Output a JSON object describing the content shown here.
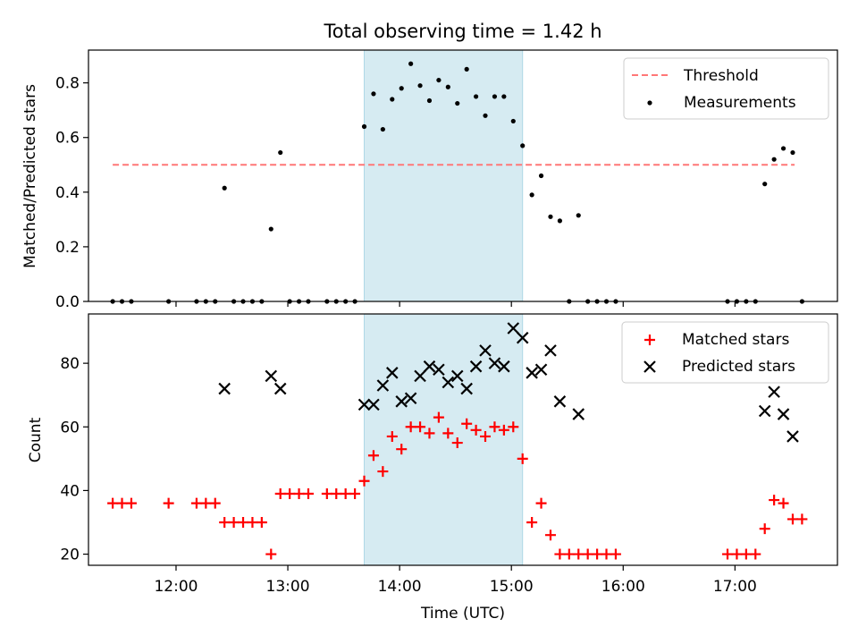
{
  "chart_data": [
    {
      "type": "scatter",
      "title": "Total observing time = 1.42 h",
      "xlabel": "",
      "ylabel": "Matched/Predicted stars",
      "xlim": [
        "11:13",
        "17:55"
      ],
      "ylim": [
        0,
        0.92
      ],
      "yticks": [
        "0.0",
        "0.2",
        "0.4",
        "0.6",
        "0.8"
      ],
      "highlight_span": {
        "start": "13:41",
        "end": "15:06",
        "color": "#add8e6"
      },
      "grid": false,
      "legend": "top-right",
      "threshold": {
        "name": "Threshold",
        "value": 0.5,
        "x_start": "11:26",
        "x_end": "17:32",
        "color": "#ff7777",
        "style": "dashed"
      },
      "series": [
        {
          "name": "Measurements",
          "marker": "dot",
          "color": "#000000",
          "points": [
            [
              "11:26",
              0.0
            ],
            [
              "11:31",
              0.0
            ],
            [
              "11:36",
              0.0
            ],
            [
              "11:56",
              0.0
            ],
            [
              "12:11",
              0.0
            ],
            [
              "12:16",
              0.0
            ],
            [
              "12:21",
              0.0
            ],
            [
              "12:26",
              0.415
            ],
            [
              "12:31",
              0.0
            ],
            [
              "12:36",
              0.0
            ],
            [
              "12:41",
              0.0
            ],
            [
              "12:46",
              0.0
            ],
            [
              "12:51",
              0.265
            ],
            [
              "12:56",
              0.545
            ],
            [
              "13:01",
              0.0
            ],
            [
              "13:06",
              0.0
            ],
            [
              "13:11",
              0.0
            ],
            [
              "13:21",
              0.0
            ],
            [
              "13:26",
              0.0
            ],
            [
              "13:31",
              0.0
            ],
            [
              "13:36",
              0.0
            ],
            [
              "13:41",
              0.64
            ],
            [
              "13:46",
              0.76
            ],
            [
              "13:51",
              0.63
            ],
            [
              "13:56",
              0.74
            ],
            [
              "14:01",
              0.78
            ],
            [
              "14:06",
              0.87
            ],
            [
              "14:11",
              0.79
            ],
            [
              "14:16",
              0.735
            ],
            [
              "14:21",
              0.81
            ],
            [
              "14:26",
              0.785
            ],
            [
              "14:31",
              0.725
            ],
            [
              "14:36",
              0.85
            ],
            [
              "14:41",
              0.75
            ],
            [
              "14:46",
              0.68
            ],
            [
              "14:51",
              0.75
            ],
            [
              "14:56",
              0.75
            ],
            [
              "15:01",
              0.66
            ],
            [
              "15:06",
              0.57
            ],
            [
              "15:11",
              0.39
            ],
            [
              "15:16",
              0.46
            ],
            [
              "15:21",
              0.31
            ],
            [
              "15:26",
              0.295
            ],
            [
              "15:31",
              0.0
            ],
            [
              "15:36",
              0.315
            ],
            [
              "15:41",
              0.0
            ],
            [
              "15:46",
              0.0
            ],
            [
              "15:51",
              0.0
            ],
            [
              "15:56",
              0.0
            ],
            [
              "16:56",
              0.0
            ],
            [
              "17:01",
              0.0
            ],
            [
              "17:06",
              0.0
            ],
            [
              "17:11",
              0.0
            ],
            [
              "17:16",
              0.43
            ],
            [
              "17:21",
              0.52
            ],
            [
              "17:26",
              0.56
            ],
            [
              "17:31",
              0.545
            ],
            [
              "17:36",
              0.0
            ]
          ]
        }
      ]
    },
    {
      "type": "scatter",
      "xlabel": "Time (UTC)",
      "ylabel": "Count",
      "xlim": [
        "11:13",
        "17:55"
      ],
      "ylim": [
        16.5,
        95.5
      ],
      "xticks": [
        "12:00",
        "13:00",
        "14:00",
        "15:00",
        "16:00",
        "17:00"
      ],
      "yticks": [
        "20",
        "40",
        "60",
        "80"
      ],
      "highlight_span": {
        "start": "13:41",
        "end": "15:06",
        "color": "#add8e6"
      },
      "grid": false,
      "legend": "top-right",
      "series": [
        {
          "name": "Matched stars",
          "marker": "plus",
          "color": "#ff0000",
          "points": [
            [
              "11:26",
              36
            ],
            [
              "11:31",
              36
            ],
            [
              "11:36",
              36
            ],
            [
              "11:56",
              36
            ],
            [
              "12:11",
              36
            ],
            [
              "12:16",
              36
            ],
            [
              "12:21",
              36
            ],
            [
              "12:26",
              30
            ],
            [
              "12:31",
              30
            ],
            [
              "12:36",
              30
            ],
            [
              "12:41",
              30
            ],
            [
              "12:46",
              30
            ],
            [
              "12:51",
              20
            ],
            [
              "12:56",
              39
            ],
            [
              "13:01",
              39
            ],
            [
              "13:06",
              39
            ],
            [
              "13:11",
              39
            ],
            [
              "13:21",
              39
            ],
            [
              "13:26",
              39
            ],
            [
              "13:31",
              39
            ],
            [
              "13:36",
              39
            ],
            [
              "13:41",
              43
            ],
            [
              "13:46",
              51
            ],
            [
              "13:51",
              46
            ],
            [
              "13:56",
              57
            ],
            [
              "14:01",
              53
            ],
            [
              "14:06",
              60
            ],
            [
              "14:11",
              60
            ],
            [
              "14:16",
              58
            ],
            [
              "14:21",
              63
            ],
            [
              "14:26",
              58
            ],
            [
              "14:31",
              55
            ],
            [
              "14:36",
              61
            ],
            [
              "14:41",
              59
            ],
            [
              "14:46",
              57
            ],
            [
              "14:51",
              60
            ],
            [
              "14:56",
              59
            ],
            [
              "15:01",
              60
            ],
            [
              "15:06",
              50
            ],
            [
              "15:11",
              30
            ],
            [
              "15:16",
              36
            ],
            [
              "15:21",
              26
            ],
            [
              "15:26",
              20
            ],
            [
              "15:31",
              20
            ],
            [
              "15:36",
              20
            ],
            [
              "15:41",
              20
            ],
            [
              "15:46",
              20
            ],
            [
              "15:51",
              20
            ],
            [
              "15:56",
              20
            ],
            [
              "16:56",
              20
            ],
            [
              "17:01",
              20
            ],
            [
              "17:06",
              20
            ],
            [
              "17:11",
              20
            ],
            [
              "17:16",
              28
            ],
            [
              "17:21",
              37
            ],
            [
              "17:26",
              36
            ],
            [
              "17:31",
              31
            ],
            [
              "17:36",
              31
            ]
          ]
        },
        {
          "name": "Predicted stars",
          "marker": "x",
          "color": "#000000",
          "points": [
            [
              "12:26",
              72
            ],
            [
              "12:51",
              76
            ],
            [
              "12:56",
              72
            ],
            [
              "13:41",
              67
            ],
            [
              "13:46",
              67
            ],
            [
              "13:51",
              73
            ],
            [
              "13:56",
              77
            ],
            [
              "14:01",
              68
            ],
            [
              "14:06",
              69
            ],
            [
              "14:11",
              76
            ],
            [
              "14:16",
              79
            ],
            [
              "14:21",
              78
            ],
            [
              "14:26",
              74
            ],
            [
              "14:31",
              76
            ],
            [
              "14:36",
              72
            ],
            [
              "14:41",
              79
            ],
            [
              "14:46",
              84
            ],
            [
              "14:51",
              80
            ],
            [
              "14:56",
              79
            ],
            [
              "15:01",
              91
            ],
            [
              "15:06",
              88
            ],
            [
              "15:11",
              77
            ],
            [
              "15:16",
              78
            ],
            [
              "15:21",
              84
            ],
            [
              "15:26",
              68
            ],
            [
              "15:36",
              64
            ],
            [
              "17:16",
              65
            ],
            [
              "17:21",
              71
            ],
            [
              "17:26",
              64
            ],
            [
              "17:31",
              57
            ]
          ]
        }
      ]
    }
  ]
}
